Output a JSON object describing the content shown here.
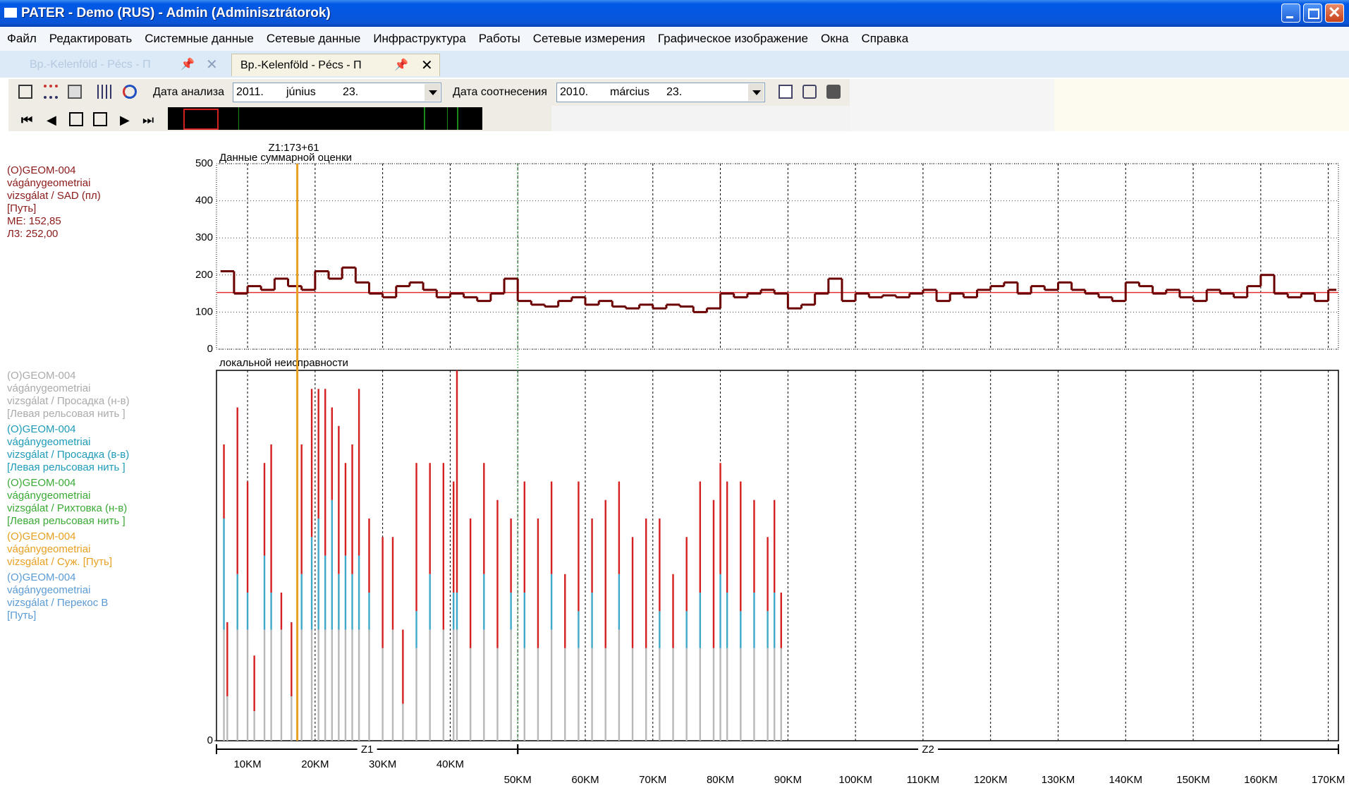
{
  "window": {
    "title": "PATER - Demo (RUS) - Admin (Adminisztrátorok)"
  },
  "menu": [
    "Файл",
    "Редактировать",
    "Системные данные",
    "Сетевые данные",
    "Инфраструктура",
    "Работы",
    "Сетевые измерения",
    "Графическое изображение",
    "Окна",
    "Справка"
  ],
  "tabs": [
    "Вр.-Kelenföld - Pécs - П",
    "Вр.-Kelenföld - Pécs - П"
  ],
  "toolbar": {
    "analysis_label": "Дата анализа",
    "analysis_date": [
      "2011.",
      "június",
      "23."
    ],
    "comparison_label": "Дата соотнесения",
    "comparison_date": [
      "2010.",
      "március",
      "23."
    ]
  },
  "legend": [
    {
      "color": "#8b1a1a",
      "lines": [
        "(O)GEOM-004",
        "vágánygeometriai",
        "vizsgálat / SAD (пл)",
        "[Путь]",
        "МЕ: 152,85",
        "Л3: 252,00"
      ]
    },
    {
      "color": "#aaaaaa",
      "lines": [
        "(O)GEOM-004",
        "vágánygeometriai",
        "vizsgálat / Просадка (н-в)",
        "[Левая рельсовая нить ]"
      ]
    },
    {
      "color": "#1e9bb8",
      "lines": [
        "(O)GEOM-004",
        "vágánygeometriai",
        "vizsgálat / Просадка (в-в)",
        "[Левая рельсовая нить ]"
      ]
    },
    {
      "color": "#3aaa35",
      "lines": [
        "(O)GEOM-004",
        "vágánygeometriai",
        "vizsgálat / Рихтовка (н-в)",
        "[Левая рельсовая нить ]"
      ]
    },
    {
      "color": "#e8a020",
      "lines": [
        "(O)GEOM-004",
        "vágánygeometriai",
        "vizsgálat / Суж. [Путь]"
      ]
    },
    {
      "color": "#5b9bd5",
      "lines": [
        "(O)GEOM-004",
        "vágánygeometriai",
        "vizsgálat / Перекос В",
        "[Путь]"
      ]
    }
  ],
  "chart_data": [
    {
      "type": "line",
      "title": "Данные суммарной оценки",
      "x": [
        6,
        8,
        10,
        12,
        14,
        16,
        18,
        20,
        22,
        24,
        26,
        28,
        30,
        32,
        34,
        36,
        38,
        40,
        42,
        44,
        46,
        48,
        50,
        52,
        54,
        56,
        58,
        60,
        62,
        64,
        66,
        68,
        70,
        72,
        74,
        76,
        78,
        80,
        82,
        84,
        86,
        88,
        90,
        92,
        94,
        96,
        98,
        100,
        102,
        104,
        106,
        108,
        110,
        112,
        114,
        116,
        118,
        120,
        122,
        124,
        126,
        128,
        130,
        132,
        134,
        136,
        138,
        140,
        142,
        144,
        146,
        148,
        150,
        152,
        154,
        156,
        158,
        160,
        162,
        164,
        166,
        168,
        170
      ],
      "values": [
        210,
        150,
        170,
        160,
        190,
        170,
        160,
        210,
        190,
        220,
        180,
        150,
        140,
        170,
        180,
        160,
        140,
        150,
        140,
        130,
        150,
        190,
        130,
        120,
        115,
        130,
        140,
        120,
        130,
        115,
        110,
        120,
        110,
        120,
        115,
        100,
        110,
        150,
        140,
        150,
        160,
        150,
        110,
        120,
        150,
        190,
        130,
        150,
        140,
        145,
        140,
        150,
        160,
        130,
        150,
        140,
        160,
        170,
        180,
        150,
        170,
        160,
        180,
        160,
        150,
        140,
        130,
        180,
        170,
        150,
        160,
        140,
        130,
        160,
        150,
        140,
        170,
        200,
        150,
        140,
        150,
        130,
        160
      ],
      "color": "#6b0000",
      "xlim": [
        5.4,
        171.5
      ],
      "ylim": [
        0,
        500
      ],
      "yticks": [
        0,
        100,
        200,
        300,
        400,
        500
      ],
      "grid": true,
      "mean_line": {
        "value": 152.85,
        "color": "#e03030"
      },
      "cursor": {
        "x": 17.361,
        "label": "Z1:173+61",
        "color": "#e8a020"
      }
    },
    {
      "type": "bar",
      "title": "локальной неисправности",
      "x": [
        6.5,
        7,
        8.5,
        10,
        11,
        12.5,
        13.5,
        15,
        16.5,
        18,
        19.5,
        20.5,
        21.5,
        22.5,
        23.5,
        24.5,
        25.5,
        26.5,
        28,
        30,
        31.5,
        33,
        35,
        37,
        39,
        40.5,
        41,
        43,
        45,
        47,
        49,
        51,
        53,
        55,
        57,
        59,
        61,
        63,
        65,
        67,
        69,
        71,
        73,
        75,
        77,
        79,
        80,
        81,
        83,
        85,
        87,
        88,
        89
      ],
      "series": [
        {
          "color": "#b8b8b8",
          "values": [
            30,
            12,
            30,
            30,
            8,
            30,
            30,
            30,
            12,
            30,
            30,
            30,
            30,
            30,
            30,
            30,
            30,
            30,
            30,
            25,
            30,
            10,
            25,
            30,
            30,
            30,
            30,
            25,
            30,
            25,
            30,
            25,
            25,
            30,
            25,
            25,
            25,
            25,
            30,
            25,
            25,
            25,
            25,
            25,
            25,
            25,
            25,
            25,
            25,
            25,
            25,
            25,
            25
          ]
        },
        {
          "color": "#3fa8c8",
          "values": [
            30,
            0,
            15,
            10,
            0,
            20,
            10,
            0,
            0,
            15,
            25,
            30,
            20,
            35,
            15,
            20,
            15,
            20,
            10,
            0,
            0,
            0,
            10,
            15,
            0,
            10,
            10,
            0,
            15,
            0,
            10,
            15,
            0,
            15,
            0,
            10,
            15,
            0,
            15,
            0,
            0,
            10,
            0,
            10,
            15,
            0,
            20,
            15,
            10,
            15,
            10,
            15,
            0
          ]
        },
        {
          "color": "#d42020",
          "values": [
            20,
            20,
            45,
            30,
            15,
            25,
            40,
            10,
            20,
            35,
            40,
            35,
            45,
            25,
            40,
            25,
            35,
            45,
            20,
            30,
            25,
            20,
            40,
            30,
            45,
            30,
            60,
            35,
            30,
            40,
            20,
            30,
            35,
            25,
            20,
            35,
            20,
            40,
            25,
            30,
            35,
            25,
            20,
            20,
            30,
            40,
            30,
            30,
            35,
            25,
            20,
            25,
            15
          ]
        }
      ],
      "xlim": [
        5.4,
        171.5
      ],
      "ylim": [
        0,
        100
      ],
      "yticks": [
        0
      ],
      "xticks": [
        {
          "value": 10,
          "label": "10KM"
        },
        {
          "value": 20,
          "label": "20KM"
        },
        {
          "value": 30,
          "label": "30KM"
        },
        {
          "value": 40,
          "label": "40KM"
        },
        {
          "value": 50,
          "label": "50KM"
        },
        {
          "value": 60,
          "label": "60KM"
        },
        {
          "value": 70,
          "label": "70KM"
        },
        {
          "value": 80,
          "label": "80KM"
        },
        {
          "value": 90,
          "label": "90KM"
        },
        {
          "value": 100,
          "label": "100KM"
        },
        {
          "value": 110,
          "label": "110KM"
        },
        {
          "value": 120,
          "label": "120KM"
        },
        {
          "value": 130,
          "label": "130KM"
        },
        {
          "value": 140,
          "label": "140KM"
        },
        {
          "value": 150,
          "label": "150KM"
        },
        {
          "value": 160,
          "label": "160KM"
        },
        {
          "value": 170,
          "label": "170KM"
        }
      ],
      "zones": [
        {
          "label": "Z1",
          "start": 5.4,
          "end": 50
        },
        {
          "label": "Z2",
          "start": 50,
          "end": 171.5
        }
      ]
    }
  ]
}
